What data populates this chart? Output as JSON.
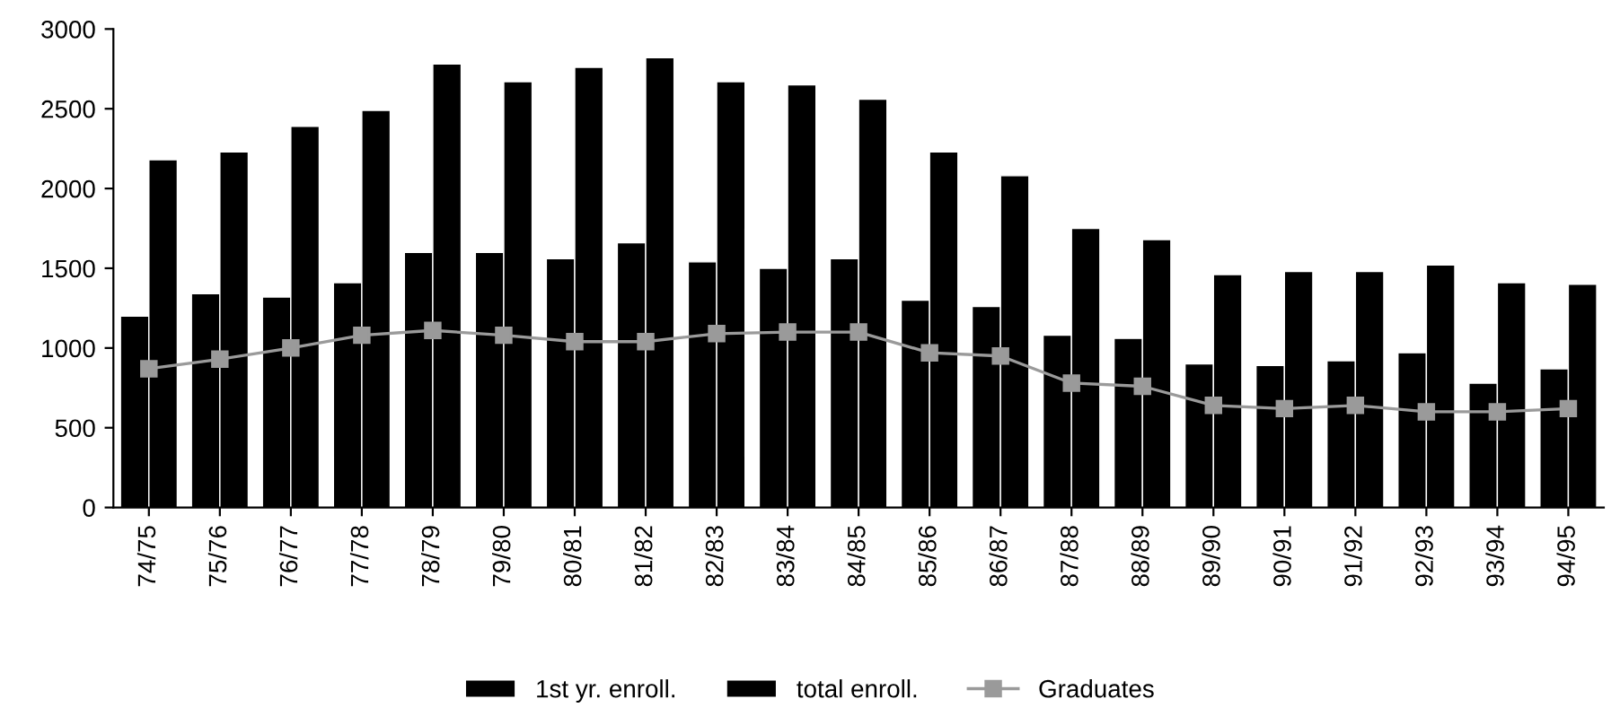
{
  "chart_data": {
    "type": "bar",
    "categories": [
      "74/75",
      "75/76",
      "76/77",
      "77/78",
      "78/79",
      "79/80",
      "80/81",
      "81/82",
      "82/83",
      "83/84",
      "84/85",
      "85/86",
      "86/87",
      "87/88",
      "88/89",
      "89/90",
      "90/91",
      "91/92",
      "92/93",
      "93/94",
      "94/95"
    ],
    "series": [
      {
        "name": "1st yr. enroll.",
        "color": "#000000",
        "values": [
          1200,
          1340,
          1320,
          1410,
          1600,
          1600,
          1560,
          1660,
          1540,
          1500,
          1560,
          1300,
          1260,
          1080,
          1060,
          900,
          890,
          920,
          970,
          780,
          870
        ]
      },
      {
        "name": "total enroll.",
        "color": "#000000",
        "values": [
          2180,
          2230,
          2390,
          2490,
          2780,
          2670,
          2760,
          2820,
          2670,
          2650,
          2560,
          2230,
          2080,
          1750,
          1680,
          1460,
          1480,
          1480,
          1520,
          1410,
          1400
        ]
      },
      {
        "name": "Graduates",
        "type": "line",
        "color": "#9a9a9a",
        "marker": "square",
        "line_style": "solid",
        "values": [
          870,
          930,
          1000,
          1080,
          1110,
          1080,
          1040,
          1040,
          1090,
          1100,
          1100,
          970,
          950,
          780,
          760,
          640,
          620,
          640,
          600,
          600,
          620
        ]
      }
    ],
    "ylim": [
      0,
      3000
    ],
    "yticks": [
      0,
      500,
      1000,
      1500,
      2000,
      2500,
      3000
    ],
    "grid": false,
    "legend": "bottom"
  }
}
